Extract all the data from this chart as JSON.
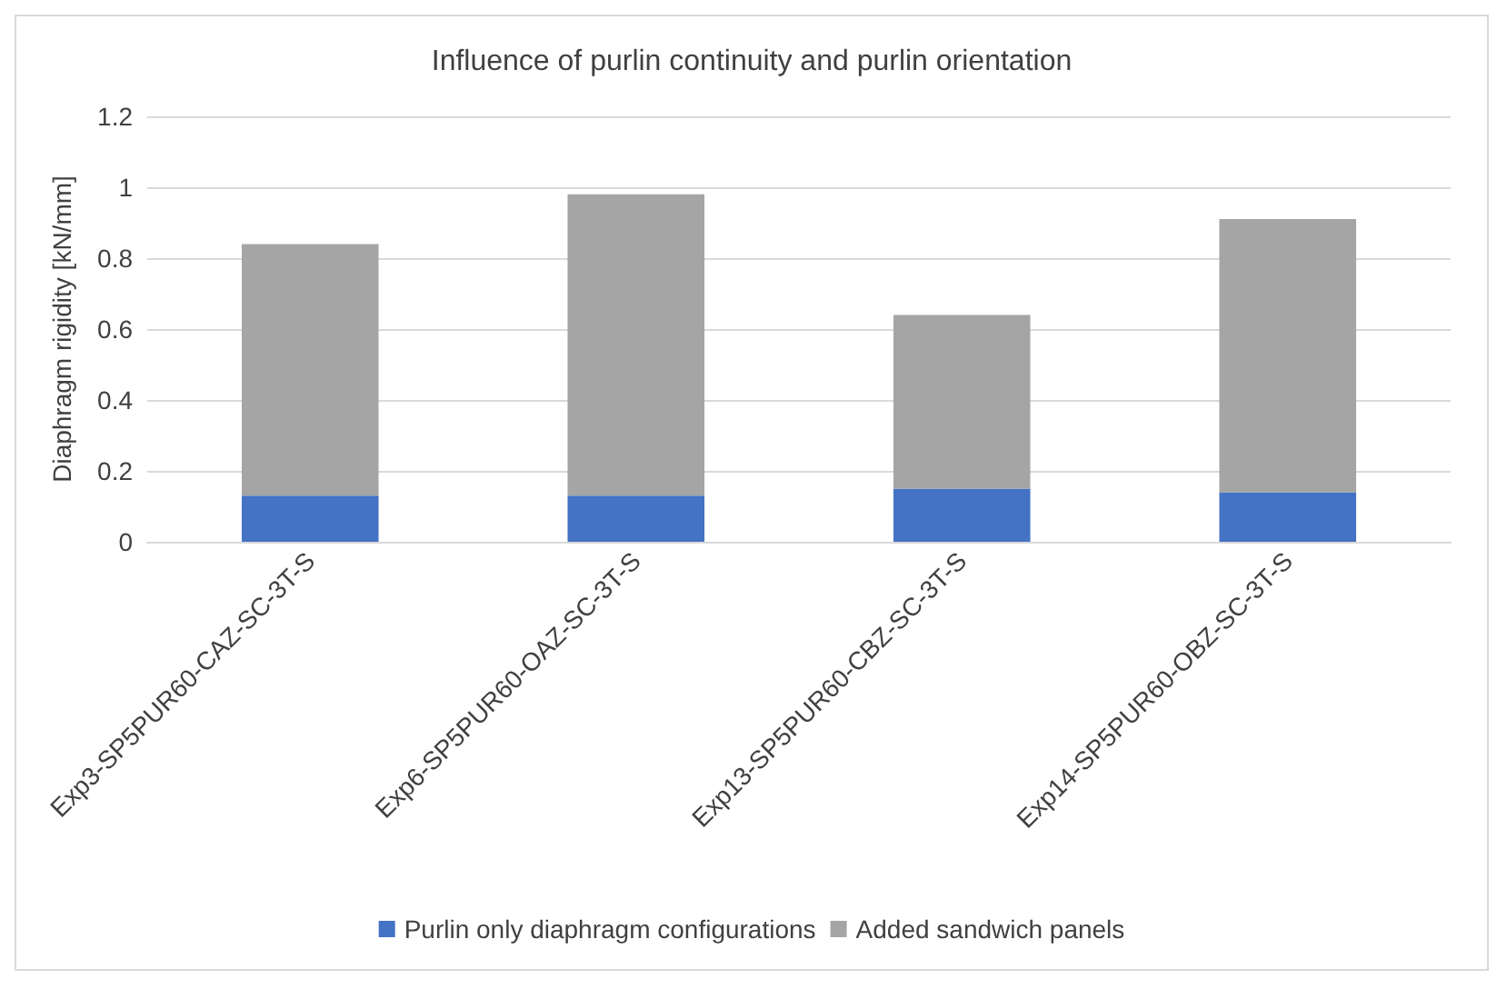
{
  "chart_data": {
    "type": "bar",
    "title": "Influence of purlin continuity and purlin orientation",
    "ylabel": "Diaphragm rigidity [kN/mm]",
    "categories": [
      "Exp3-SP5PUR60-CAZ-SC-3T-S",
      "Exp6-SP5PUR60-OAZ-SC-3T-S",
      "Exp13-SP5PUR60-CBZ-SC-3T-S",
      "Exp14-SP5PUR60-OBZ-SC-3T-S"
    ],
    "series": [
      {
        "name": "Purlin only diaphragm configurations",
        "color": "#4472c4",
        "values": [
          0.13,
          0.13,
          0.15,
          0.14
        ]
      },
      {
        "name": "Added sandwich panels",
        "color": "#a5a5a5",
        "values": [
          0.71,
          0.85,
          0.49,
          0.77
        ]
      }
    ],
    "stacked": true,
    "ylim": [
      0,
      1.2
    ],
    "yticks": [
      0,
      0.2,
      0.4,
      0.6,
      0.8,
      1,
      1.2
    ],
    "grid": "y",
    "legend": "bottom"
  }
}
